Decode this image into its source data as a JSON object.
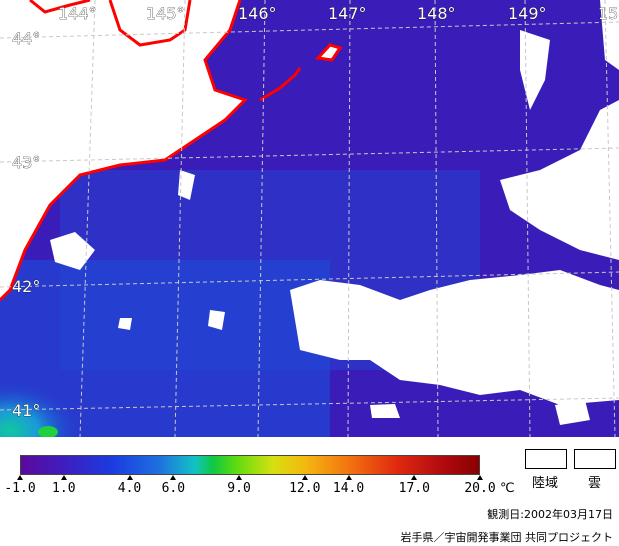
{
  "map": {
    "longitude_labels": [
      "144°",
      "145°",
      "146°",
      "147°",
      "148°",
      "149°",
      "15"
    ],
    "latitude_labels": [
      "44°",
      "43°",
      "42°",
      "41°"
    ],
    "coastline_color": "#ff0000",
    "grid_color": "#c8c8c8"
  },
  "scale": {
    "ticks": [
      "-1.0",
      "1.0",
      "4.0",
      "6.0",
      "9.0",
      "12.0",
      "14.0",
      "17.0",
      "20.0"
    ],
    "tick_values": [
      -1.0,
      1.0,
      4.0,
      6.0,
      9.0,
      12.0,
      14.0,
      17.0,
      20.0
    ],
    "min": -1.0,
    "max": 20.0,
    "unit": "℃"
  },
  "legend": {
    "land_label": "陸域",
    "cloud_label": "雲"
  },
  "observation_date": "観測日:2002年03月17日",
  "credit": "岩手県／宇宙開発事業団 共同プロジェクト"
}
